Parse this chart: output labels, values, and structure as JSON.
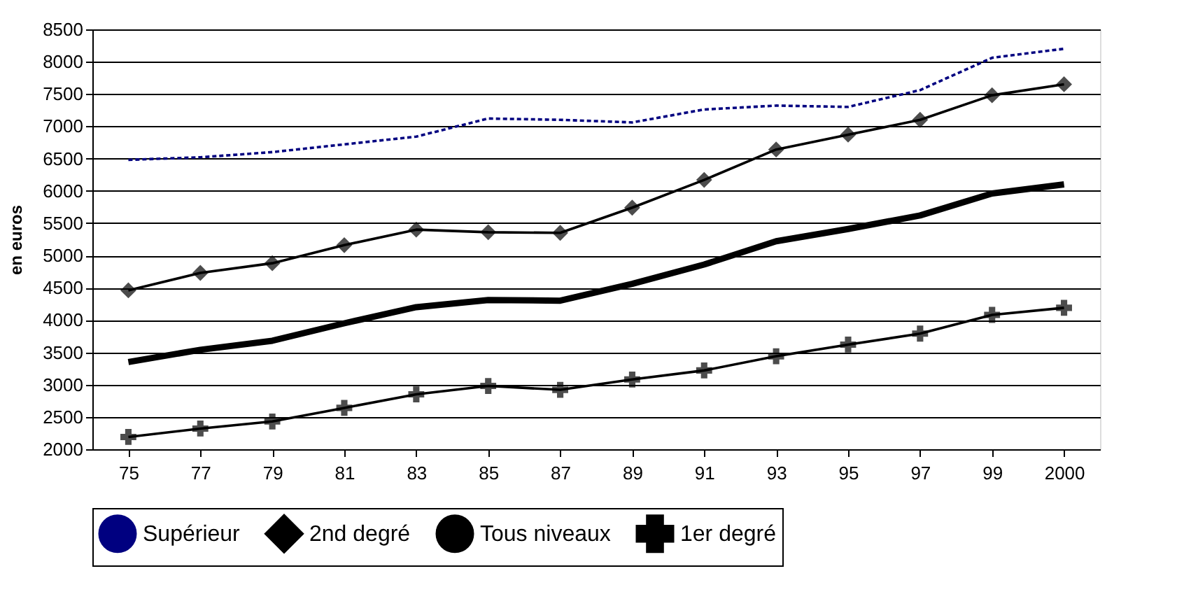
{
  "chart_data": {
    "type": "line",
    "ylabel": "en euros",
    "categories": [
      "75",
      "77",
      "79",
      "81",
      "83",
      "85",
      "87",
      "89",
      "91",
      "93",
      "95",
      "97",
      "99",
      "2000"
    ],
    "series": [
      {
        "name": "Supérieur",
        "color": "#000080",
        "marker": "none",
        "line_style": "dotted",
        "values": [
          6480,
          6520,
          6600,
          6720,
          6840,
          7120,
          7100,
          7060,
          7260,
          7320,
          7300,
          7560,
          8060,
          8200
        ]
      },
      {
        "name": "2nd degré",
        "color": "#000000",
        "marker": "diamond",
        "line_style": "solid",
        "values": [
          4460,
          4730,
          4880,
          5160,
          5400,
          5360,
          5350,
          5740,
          6170,
          6640,
          6870,
          7100,
          7480,
          7650
        ]
      },
      {
        "name": "Tous niveaux",
        "color": "#000000",
        "marker": "none",
        "line_style": "solid",
        "values": [
          3350,
          3540,
          3680,
          3950,
          4200,
          4310,
          4300,
          4560,
          4860,
          5220,
          5410,
          5620,
          5960,
          6100
        ]
      },
      {
        "name": "1er degré",
        "color": "#000000",
        "marker": "cross",
        "line_style": "solid",
        "values": [
          2190,
          2320,
          2430,
          2640,
          2850,
          2980,
          2920,
          3080,
          3220,
          3440,
          3620,
          3790,
          4080,
          4190
        ]
      }
    ],
    "ylim": [
      2000,
      8500
    ],
    "yticks": [
      2000,
      2500,
      3000,
      3500,
      4000,
      4500,
      5000,
      5500,
      6000,
      6500,
      7000,
      7500,
      8000,
      8500
    ],
    "grid": "y",
    "legend": "bottom"
  }
}
